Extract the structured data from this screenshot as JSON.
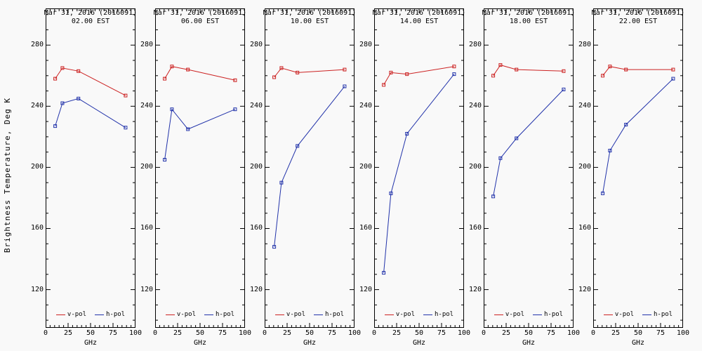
{
  "figure": {
    "ylabel": "Brightness Temperature, Deg K",
    "xlabel": "GHz",
    "background": "#f9f9f9",
    "axis_color": "#000000"
  },
  "chart_data": [
    {
      "type": "line",
      "title": "Mar 31, 2016 (2016091)",
      "subtitle": "02.00 EST",
      "x": [
        10.65,
        18.7,
        36.5,
        89
      ],
      "xlim": [
        0,
        100
      ],
      "ylim": [
        95,
        304
      ],
      "xticks": [
        0,
        25,
        50,
        75,
        100
      ],
      "yticks": [
        120,
        160,
        200,
        240,
        280
      ],
      "legend_position": "bottom",
      "series": [
        {
          "name": "v-pol",
          "color": "#cc2222",
          "values": [
            258,
            265,
            263,
            247
          ]
        },
        {
          "name": "h-pol",
          "color": "#2233aa",
          "values": [
            227,
            242,
            245,
            226
          ]
        }
      ]
    },
    {
      "type": "line",
      "title": "Mar 31, 2016 (2016091)",
      "subtitle": "06.00 EST",
      "x": [
        10.65,
        18.7,
        36.5,
        89
      ],
      "xlim": [
        0,
        100
      ],
      "ylim": [
        95,
        304
      ],
      "xticks": [
        0,
        25,
        50,
        75,
        100
      ],
      "yticks": [
        120,
        160,
        200,
        240,
        280
      ],
      "legend_position": "bottom",
      "series": [
        {
          "name": "v-pol",
          "color": "#cc2222",
          "values": [
            258,
            266,
            264,
            257
          ]
        },
        {
          "name": "h-pol",
          "color": "#2233aa",
          "values": [
            205,
            238,
            225,
            238
          ]
        }
      ]
    },
    {
      "type": "line",
      "title": "Mar 31, 2016 (2016091)",
      "subtitle": "10.00 EST",
      "x": [
        10.65,
        18.7,
        36.5,
        89
      ],
      "xlim": [
        0,
        100
      ],
      "ylim": [
        95,
        304
      ],
      "xticks": [
        0,
        25,
        50,
        75,
        100
      ],
      "yticks": [
        120,
        160,
        200,
        240,
        280
      ],
      "legend_position": "bottom",
      "series": [
        {
          "name": "v-pol",
          "color": "#cc2222",
          "values": [
            259,
            265,
            262,
            264
          ]
        },
        {
          "name": "h-pol",
          "color": "#2233aa",
          "values": [
            148,
            190,
            214,
            253
          ]
        }
      ]
    },
    {
      "type": "line",
      "title": "Mar 31, 2016 (2016091)",
      "subtitle": "14.00 EST",
      "x": [
        10.65,
        18.7,
        36.5,
        89
      ],
      "xlim": [
        0,
        100
      ],
      "ylim": [
        95,
        304
      ],
      "xticks": [
        0,
        25,
        50,
        75,
        100
      ],
      "yticks": [
        120,
        160,
        200,
        240,
        280
      ],
      "legend_position": "bottom",
      "series": [
        {
          "name": "v-pol",
          "color": "#cc2222",
          "values": [
            254,
            262,
            261,
            266
          ]
        },
        {
          "name": "h-pol",
          "color": "#2233aa",
          "values": [
            131,
            183,
            222,
            261
          ]
        }
      ]
    },
    {
      "type": "line",
      "title": "Mar 31, 2016 (2016091)",
      "subtitle": "18.00 EST",
      "x": [
        10.65,
        18.7,
        36.5,
        89
      ],
      "xlim": [
        0,
        100
      ],
      "ylim": [
        95,
        304
      ],
      "xticks": [
        0,
        25,
        50,
        75,
        100
      ],
      "yticks": [
        120,
        160,
        200,
        240,
        280
      ],
      "legend_position": "bottom",
      "series": [
        {
          "name": "v-pol",
          "color": "#cc2222",
          "values": [
            260,
            267,
            264,
            263
          ]
        },
        {
          "name": "h-pol",
          "color": "#2233aa",
          "values": [
            181,
            206,
            219,
            251
          ]
        }
      ]
    },
    {
      "type": "line",
      "title": "Mar 31, 2016 (2016091)",
      "subtitle": "22.00 EST",
      "x": [
        10.65,
        18.7,
        36.5,
        89
      ],
      "xlim": [
        0,
        100
      ],
      "ylim": [
        95,
        304
      ],
      "xticks": [
        0,
        25,
        50,
        75,
        100
      ],
      "yticks": [
        120,
        160,
        200,
        240,
        280
      ],
      "legend_position": "bottom",
      "series": [
        {
          "name": "v-pol",
          "color": "#cc2222",
          "values": [
            260,
            266,
            264,
            264
          ]
        },
        {
          "name": "h-pol",
          "color": "#2233aa",
          "values": [
            183,
            211,
            228,
            258
          ]
        }
      ]
    }
  ]
}
